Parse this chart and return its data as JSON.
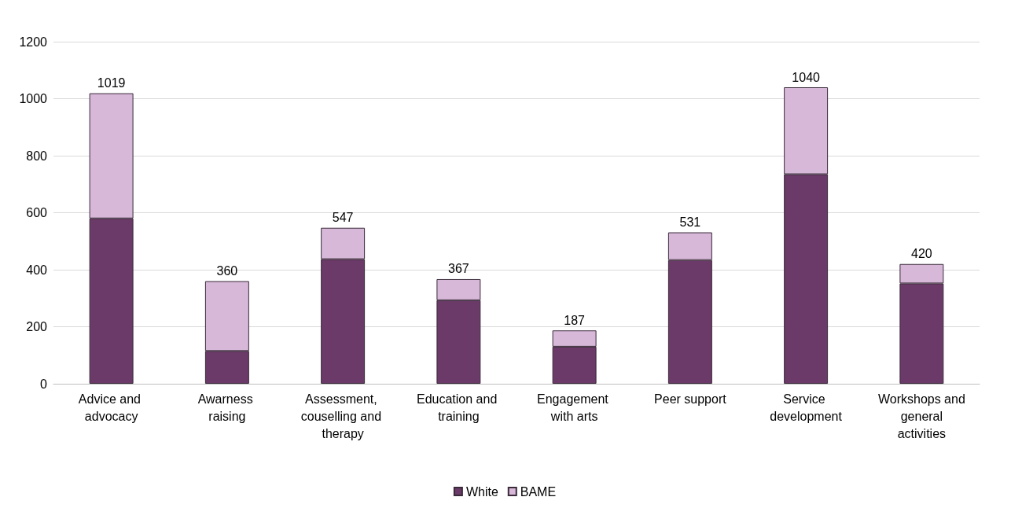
{
  "chart_data": {
    "type": "bar",
    "stacked": true,
    "categories": [
      "Advice and advocacy",
      "Awarness raising",
      "Assessment, couselling and therapy",
      "Education and training",
      "Engagement with arts",
      "Peer support",
      "Service development",
      "Workshops and general activities"
    ],
    "series": [
      {
        "name": "White",
        "color": "#6b3a68",
        "values": [
          580,
          115,
          437,
          293,
          130,
          434,
          735,
          352
        ]
      },
      {
        "name": "BAME",
        "color": "#d7b8d8",
        "values": [
          439,
          245,
          110,
          74,
          57,
          97,
          305,
          68
        ]
      }
    ],
    "totals": [
      "1019",
      "360",
      "547",
      "367",
      "187",
      "531",
      "1040",
      "420"
    ],
    "ylim": [
      0,
      1200
    ],
    "yticks": [
      0,
      200,
      400,
      600,
      800,
      1000,
      1200
    ],
    "grid": "y",
    "legend": "bottom"
  }
}
